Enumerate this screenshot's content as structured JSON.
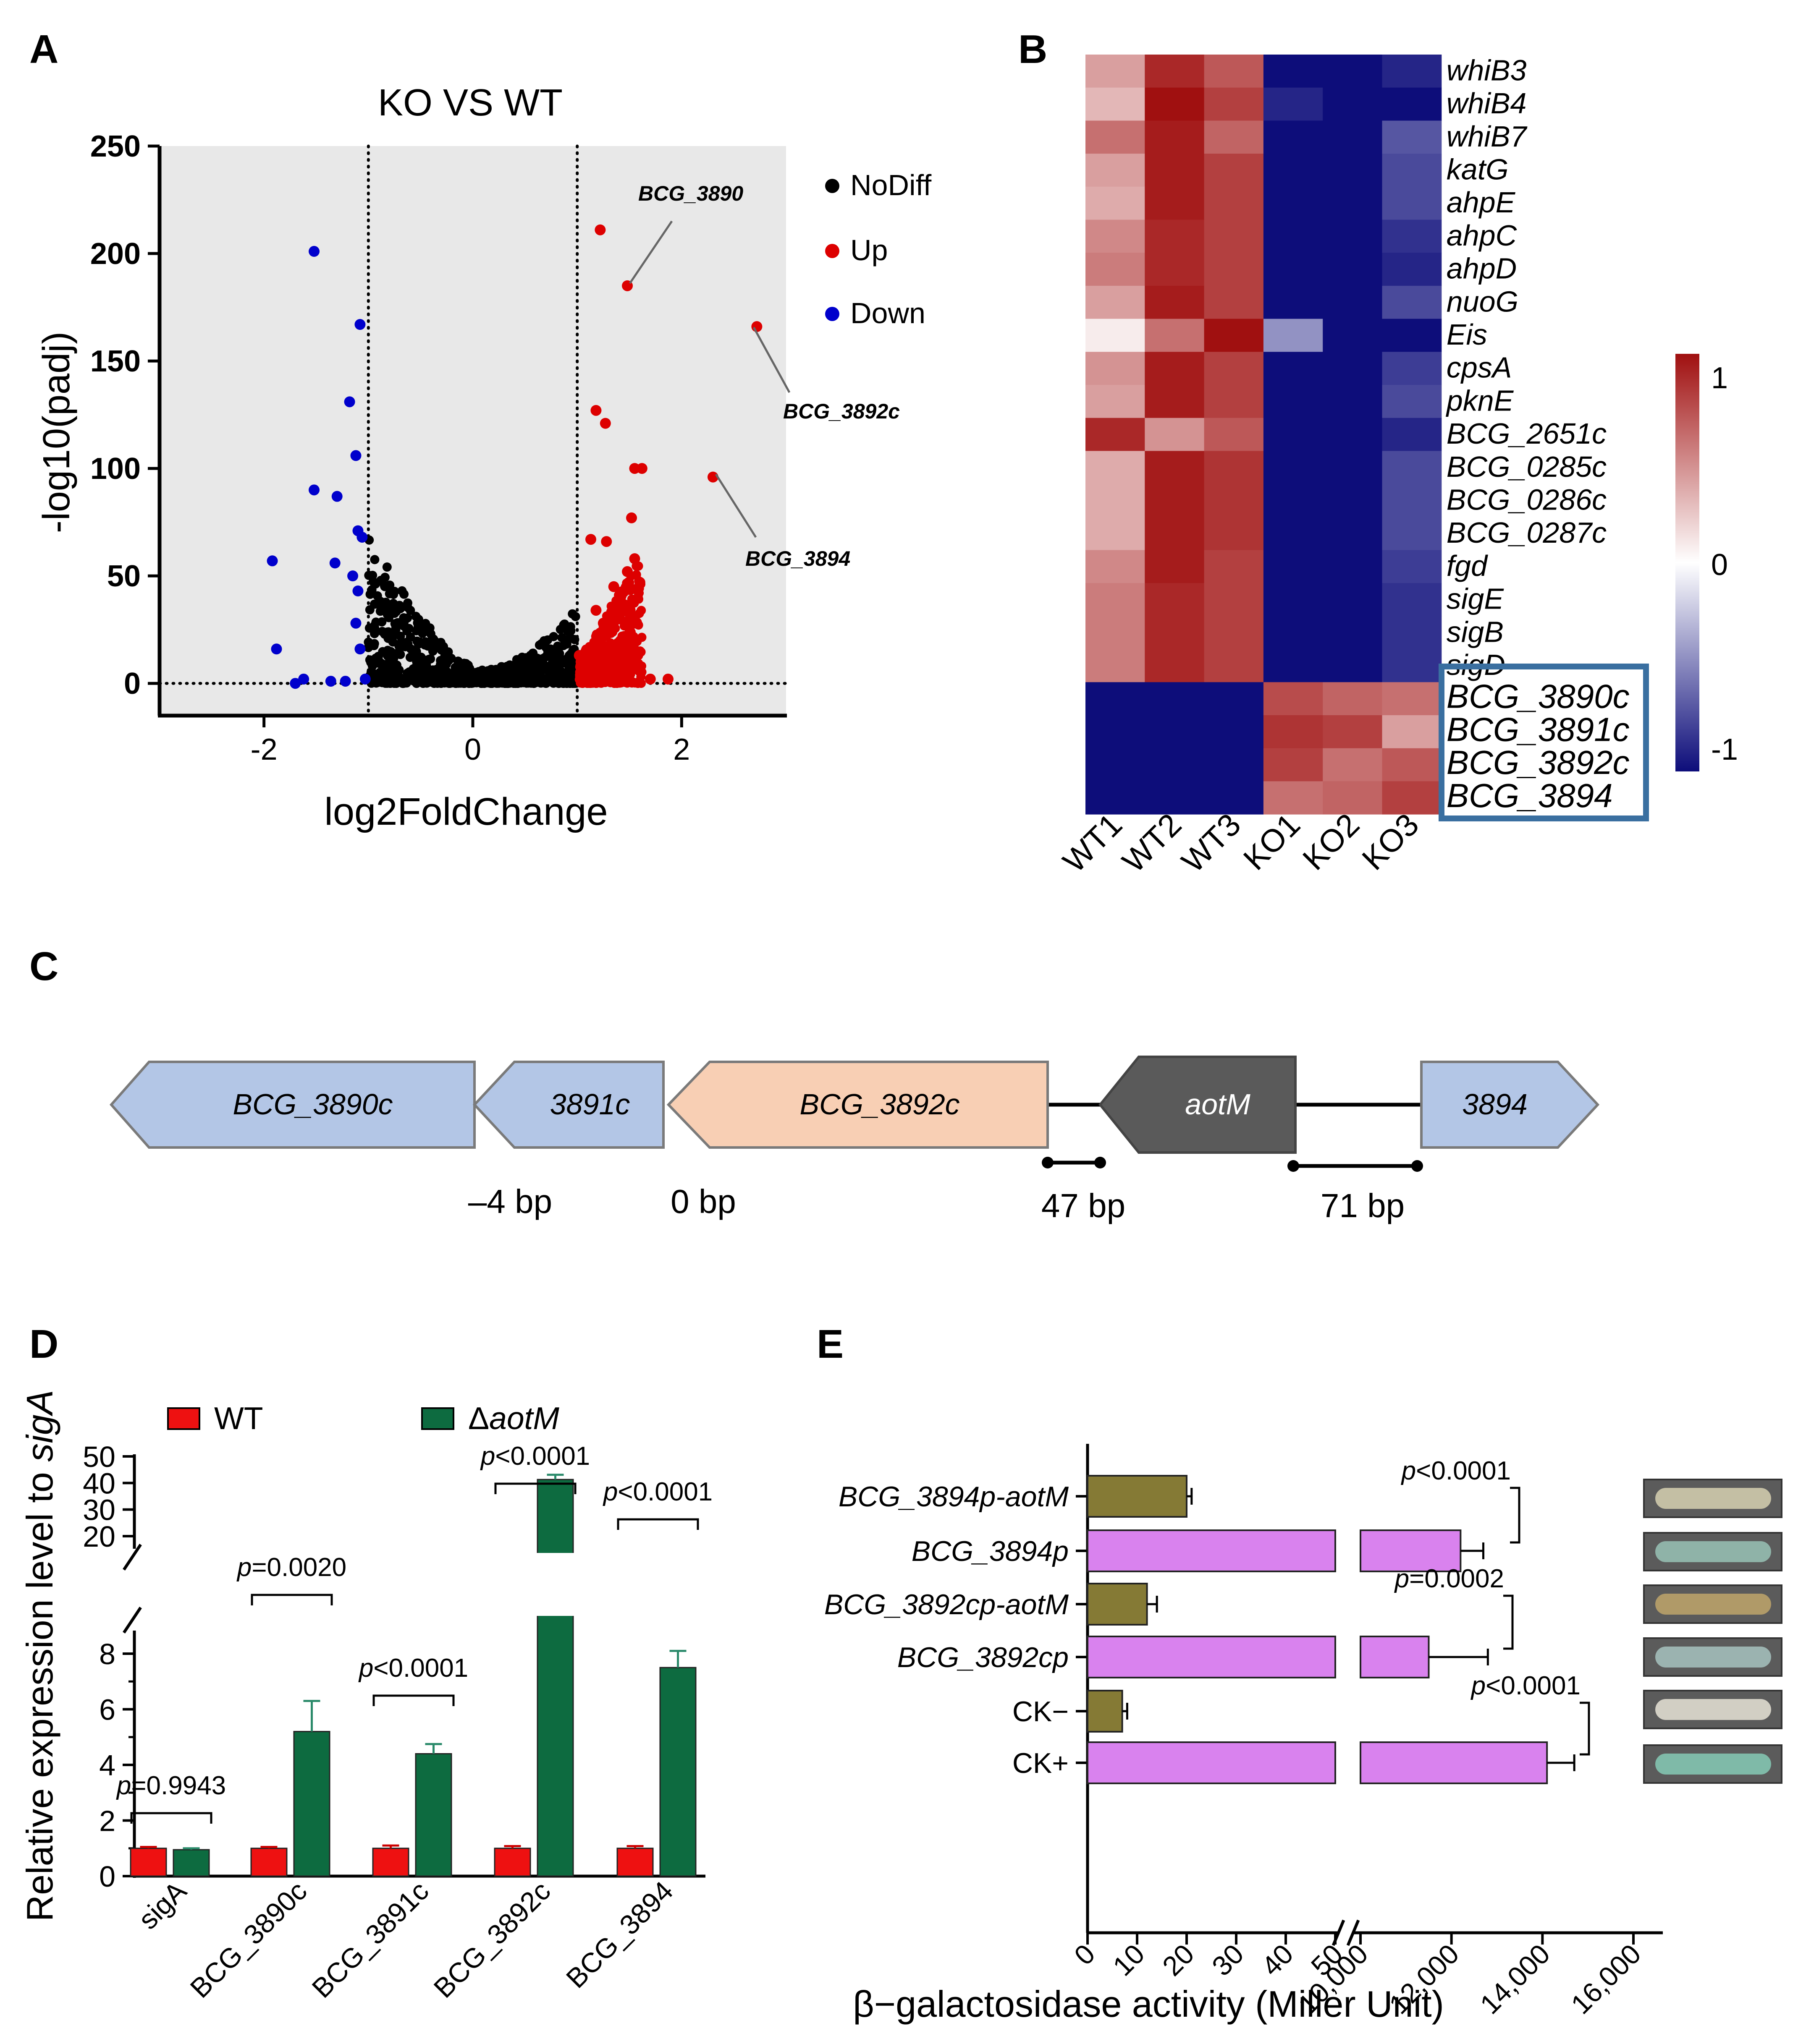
{
  "panels": {
    "A": {
      "letter": "A",
      "title": "KO VS WT",
      "xlabel": "log2FoldChange",
      "ylabel": "-log10(padj)",
      "xticks": [
        "-2",
        "0",
        "2"
      ],
      "yticks": [
        "0",
        "50",
        "100",
        "150",
        "200",
        "250"
      ],
      "legend": [
        {
          "label": "NoDiff",
          "color": "#000000"
        },
        {
          "label": "Up",
          "color": "#dd0000"
        },
        {
          "label": "Down",
          "color": "#0000cc"
        }
      ],
      "callouts": [
        "BCG_3890",
        "BCG_3892c",
        "BCG_3894"
      ]
    },
    "B": {
      "letter": "B",
      "columns": [
        "WT1",
        "WT2",
        "WT3",
        "KO1",
        "KO2",
        "KO3"
      ],
      "colorbar_ticks": [
        "1",
        "0",
        "-1"
      ]
    },
    "C": {
      "letter": "C",
      "genes": [
        "BCG_3890c",
        "3891c",
        "BCG_3892c",
        "aotM",
        "3894"
      ],
      "gaps": [
        "–4 bp",
        "0 bp",
        "47 bp",
        "71 bp"
      ]
    },
    "D": {
      "letter": "D",
      "ylabel_prefix": "Relative expression level to ",
      "ylabel_gene": "sigA",
      "legend_wt": "WT",
      "legend_ko_prefix": "Δ",
      "legend_ko_gene": "aotM",
      "upper_ticks": [
        "20",
        "30",
        "40",
        "50"
      ],
      "lower_ticks": [
        "0",
        "2",
        "4",
        "6",
        "8"
      ],
      "pvalues": [
        "=0.9943",
        "=0.0020",
        "<0.0001",
        "<0.0001",
        "<0.0001"
      ],
      "p_symbol": "p"
    },
    "E": {
      "letter": "E",
      "xlabel": "β−galactosidase activity (Miller Unit)",
      "ticks_left": [
        "0",
        "10",
        "20",
        "30",
        "40",
        "50"
      ],
      "ticks_right": [
        "10,000",
        "12,000",
        "14,000",
        "16,000"
      ],
      "pvalues": [
        "<0.0001",
        "=0.0002",
        "<0.0001"
      ],
      "p_symbol": "p"
    }
  },
  "chart_data": [
    {
      "type": "scatter",
      "title": "KO VS WT",
      "xlabel": "log2FoldChange",
      "ylabel": "-log10(padj)",
      "xlim": [
        -3,
        3
      ],
      "ylim": [
        -15,
        250
      ],
      "thresholds": {
        "x": [
          -1,
          1
        ],
        "y": 0
      },
      "series": [
        {
          "name": "Down",
          "color": "#0000cc",
          "points": [
            [
              -1.52,
              201
            ],
            [
              -1.08,
              167
            ],
            [
              -1.18,
              131
            ],
            [
              -1.12,
              106
            ],
            [
              -1.52,
              90
            ],
            [
              -1.3,
              87
            ],
            [
              -1.1,
              71
            ],
            [
              -1.06,
              68
            ],
            [
              -1.32,
              56
            ],
            [
              -1.92,
              57
            ],
            [
              -1.15,
              50
            ],
            [
              -1.1,
              43
            ],
            [
              -1.12,
              28
            ],
            [
              -1.88,
              16
            ],
            [
              -1.08,
              16
            ],
            [
              -1.62,
              2
            ],
            [
              -1.7,
              0
            ],
            [
              -1.36,
              1
            ],
            [
              -1.22,
              1
            ],
            [
              -1.03,
              2
            ]
          ]
        },
        {
          "name": "Up",
          "color": "#dd0000",
          "points": [
            [
              1.22,
              211
            ],
            [
              1.48,
              185
            ],
            [
              2.72,
              166
            ],
            [
              1.18,
              127
            ],
            [
              1.27,
              121
            ],
            [
              1.55,
              100
            ],
            [
              1.62,
              100
            ],
            [
              2.3,
              96
            ],
            [
              1.52,
              77
            ],
            [
              1.13,
              67
            ],
            [
              1.28,
              66
            ],
            [
              1.55,
              58
            ],
            [
              1.48,
              52
            ],
            [
              1.6,
              47
            ],
            [
              1.35,
              45
            ],
            [
              1.18,
              34
            ],
            [
              1.4,
              30
            ],
            [
              1.25,
              28
            ],
            [
              1.87,
              2
            ],
            [
              1.02,
              13
            ],
            [
              1.7,
              2
            ]
          ]
        },
        {
          "name": "NoDiff",
          "color": "#000000",
          "summary": "dense V-shaped cloud between log2FC -1 and 1, -log10(padj) 0 to ~70"
        }
      ],
      "annotations": [
        "BCG_3890",
        "BCG_3892c",
        "BCG_3894"
      ]
    },
    {
      "type": "heatmap",
      "columns": [
        "WT1",
        "WT2",
        "WT3",
        "KO1",
        "KO2",
        "KO3"
      ],
      "rows": [
        "whiB3",
        "whiB4",
        "whiB7",
        "katG",
        "ahpE",
        "ahpC",
        "ahpD",
        "nuoG",
        "Eis",
        "cpsA",
        "pknE",
        "BCG_2651c",
        "BCG_0285c",
        "BCG_0286c",
        "BCG_0287c",
        "fgd",
        "sigE",
        "sigB",
        "sigD",
        "BCG_3890c",
        "BCG_3891c",
        "BCG_3892c",
        "BCG_3894"
      ],
      "values": [
        [
          0.4,
          0.9,
          0.7,
          -1.0,
          -1.15,
          -0.9
        ],
        [
          0.3,
          1.1,
          0.8,
          -0.9,
          -1.1,
          -1.0
        ],
        [
          0.6,
          0.95,
          0.65,
          -1.05,
          -1.15,
          -0.7
        ],
        [
          0.4,
          0.95,
          0.8,
          -1.0,
          -1.1,
          -0.75
        ],
        [
          0.35,
          0.95,
          0.8,
          -1.0,
          -1.15,
          -0.75
        ],
        [
          0.5,
          0.9,
          0.8,
          -1.0,
          -1.1,
          -0.85
        ],
        [
          0.55,
          0.9,
          0.8,
          -1.0,
          -1.15,
          -0.9
        ],
        [
          0.4,
          0.95,
          0.8,
          -1.0,
          -1.15,
          -0.75
        ],
        [
          0.08,
          0.6,
          1.2,
          -0.45,
          -1.1,
          -1.15
        ],
        [
          0.45,
          0.95,
          0.8,
          -1.05,
          -1.1,
          -0.8
        ],
        [
          0.4,
          0.95,
          0.8,
          -1.0,
          -1.15,
          -0.75
        ],
        [
          0.9,
          0.45,
          0.7,
          -1.15,
          -1.0,
          -0.9
        ],
        [
          0.35,
          0.95,
          0.85,
          -1.0,
          -1.15,
          -0.75
        ],
        [
          0.35,
          0.95,
          0.85,
          -1.0,
          -1.15,
          -0.75
        ],
        [
          0.35,
          0.95,
          0.85,
          -1.0,
          -1.15,
          -0.75
        ],
        [
          0.5,
          0.95,
          0.8,
          -1.0,
          -1.15,
          -0.8
        ],
        [
          0.55,
          0.9,
          0.8,
          -1.0,
          -1.1,
          -0.85
        ],
        [
          0.55,
          0.9,
          0.8,
          -1.0,
          -1.1,
          -0.85
        ],
        [
          0.55,
          0.9,
          0.8,
          -1.0,
          -1.1,
          -0.85
        ],
        [
          -1.05,
          -1.0,
          -1.05,
          0.75,
          0.65,
          0.6
        ],
        [
          -1.0,
          -1.0,
          -1.0,
          0.85,
          0.8,
          0.4
        ],
        [
          -1.0,
          -1.0,
          -1.0,
          0.8,
          0.6,
          0.7
        ],
        [
          -1.0,
          -1.0,
          -1.0,
          0.6,
          0.65,
          0.8
        ]
      ],
      "colorbar": {
        "min": -1,
        "max": 1,
        "low_color": "#0d0d7a",
        "mid_color": "#ffffff",
        "high_color": "#a01010"
      },
      "highlight_rows": [
        "BCG_3890c",
        "BCG_3891c",
        "BCG_3892c",
        "BCG_3894"
      ],
      "highlight_color": "#3a6fa0"
    },
    {
      "type": "bar",
      "categories": [
        "sigA",
        "BCG_3890c",
        "BCG_3891c",
        "BCG_3892c",
        "BCG_3894"
      ],
      "series": [
        {
          "name": "WT",
          "color": "#ee1111",
          "values": [
            1.0,
            1.0,
            1.0,
            1.0,
            1.0
          ],
          "errors": [
            0.05,
            0.05,
            0.1,
            0.08,
            0.08
          ]
        },
        {
          "name": "ΔaotM",
          "color": "#0d6b40",
          "values": [
            0.95,
            5.2,
            4.4,
            41.3,
            7.5
          ],
          "errors": [
            0.05,
            1.1,
            0.35,
            1.8,
            0.6
          ]
        }
      ],
      "ylabel": "Relative expression level to sigA",
      "y_break": [
        8.5,
        20
      ],
      "ylim": [
        0,
        50
      ],
      "pvalues": [
        "p=0.9943",
        "p=0.0020",
        "p<0.0001",
        "p<0.0001",
        "p<0.0001"
      ]
    },
    {
      "type": "bar",
      "orientation": "horizontal",
      "categories": [
        "BCG_3894p-aotM",
        "BCG_3894p",
        "BCG_3892cp-aotM",
        "BCG_3892cp",
        "CK−",
        "CK+"
      ],
      "values": [
        20,
        12200,
        12,
        11500,
        7,
        14100
      ],
      "errors": [
        1,
        500,
        2,
        1300,
        1,
        600
      ],
      "colors": [
        "#857a35",
        "#d982ee",
        "#857a35",
        "#d982ee",
        "#857a35",
        "#d982ee"
      ],
      "xlabel": "β−galactosidase activity (Miller Unit)",
      "x_break": [
        52,
        9500
      ],
      "pvalues": [
        {
          "pair": [
            "BCG_3894p-aotM",
            "BCG_3894p"
          ],
          "label": "p<0.0001"
        },
        {
          "pair": [
            "BCG_3892cp-aotM",
            "BCG_3892cp"
          ],
          "label": "p=0.0002"
        },
        {
          "pair": [
            "CK−",
            "CK+"
          ],
          "label": "p<0.0001"
        }
      ],
      "colony_colors": [
        "#c4bfa4",
        "#8fb3a8",
        "#b09a68",
        "#9bb3b0",
        "#d2cfc4",
        "#7fbaa8"
      ]
    }
  ]
}
